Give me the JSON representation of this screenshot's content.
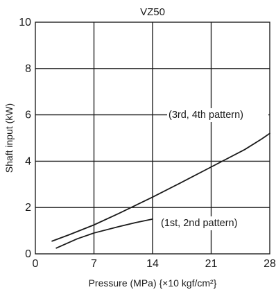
{
  "chart_data": {
    "type": "line",
    "title": "VZ50",
    "xlabel": "Pressure (MPa) {×10 kgf/cm²}",
    "ylabel": "Shaft input (kW)",
    "xlim": [
      0,
      28
    ],
    "ylim": [
      0,
      10
    ],
    "grid": true,
    "x_ticks": [
      0,
      7,
      14,
      21,
      28
    ],
    "y_ticks": [
      0,
      2,
      4,
      6,
      8,
      10
    ],
    "annotations": [
      {
        "text": "(3rd, 4th pattern)"
      },
      {
        "text": "(1st, 2nd pattern)"
      }
    ],
    "series": [
      {
        "points": [
          [
            2,
            0.55
          ],
          [
            4,
            0.82
          ],
          [
            7,
            1.25
          ],
          [
            10,
            1.75
          ],
          [
            14,
            2.45
          ],
          [
            17,
            3.0
          ],
          [
            21,
            3.75
          ],
          [
            25,
            4.5
          ],
          [
            27,
            4.95
          ],
          [
            28,
            5.2
          ]
        ]
      },
      {
        "points": [
          [
            2.5,
            0.25
          ],
          [
            5,
            0.65
          ],
          [
            7,
            0.9
          ],
          [
            10,
            1.18
          ],
          [
            12,
            1.35
          ],
          [
            14,
            1.5
          ]
        ]
      }
    ]
  }
}
